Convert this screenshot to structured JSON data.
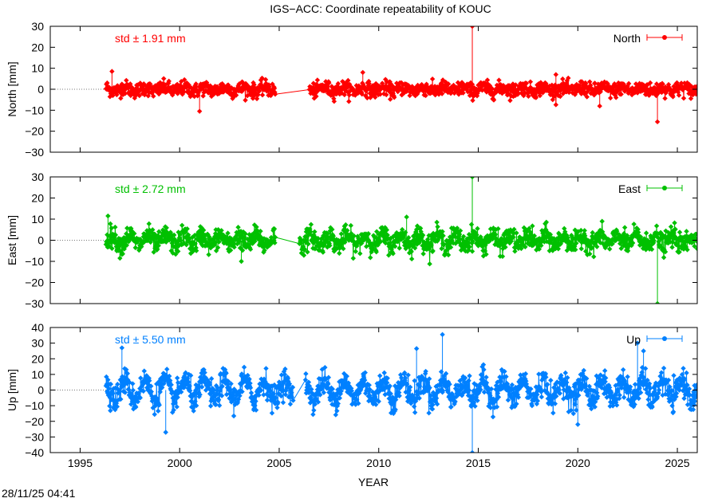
{
  "timestamp": "28/11/25 04:41",
  "chart_data": {
    "type": "scatter",
    "title": "IGS−ACC: Coordinate repeatability of KOUC",
    "xlabel": "YEAR",
    "xlim": [
      1993.5,
      2026.0
    ],
    "xticks": [
      1995,
      2000,
      2005,
      2010,
      2015,
      2020,
      2025
    ],
    "panels": [
      {
        "id": "north",
        "ylabel": "North [mm]",
        "ylim": [
          -30,
          30
        ],
        "yticks": [
          -30,
          -20,
          -10,
          0,
          10,
          20,
          30
        ],
        "color": "#ff0000",
        "legend": "North",
        "legend_position": "top-right",
        "std_label": "std ± 1.91 mm",
        "std_mm": 1.91,
        "data_start": 1996.3,
        "data_end": 2026.0,
        "gaps": [
          [
            2004.8,
            2006.5
          ]
        ],
        "outliers": [
          {
            "x": 2014.7,
            "y": 30
          },
          {
            "x": 2024.0,
            "y": -15.5
          },
          {
            "x": 2001.0,
            "y": -10.5
          },
          {
            "x": 2009.2,
            "y": 8.0
          },
          {
            "x": 1996.6,
            "y": 8.5
          },
          {
            "x": 2018.9,
            "y": 7.0
          },
          {
            "x": 2021.1,
            "y": -8.0
          }
        ]
      },
      {
        "id": "east",
        "ylabel": "East [mm]",
        "ylim": [
          -30,
          30
        ],
        "yticks": [
          -30,
          -20,
          -10,
          0,
          10,
          20,
          30
        ],
        "color": "#00c000",
        "legend": "East",
        "legend_position": "top-right",
        "std_label": "std ± 2.72 mm",
        "std_mm": 2.72,
        "data_start": 1996.3,
        "data_end": 2026.0,
        "gaps": [
          [
            2004.8,
            2006.0
          ]
        ],
        "outliers": [
          {
            "x": 2014.7,
            "y": 30
          },
          {
            "x": 2024.0,
            "y": -30
          },
          {
            "x": 1996.4,
            "y": 11.5
          },
          {
            "x": 2011.4,
            "y": 11.0
          },
          {
            "x": 2003.1,
            "y": -10.0
          },
          {
            "x": 2025.5,
            "y": -4.5
          }
        ]
      },
      {
        "id": "up",
        "ylabel": "Up [mm]",
        "ylim": [
          -40,
          40
        ],
        "yticks": [
          -40,
          -30,
          -20,
          -10,
          0,
          10,
          20,
          30,
          40
        ],
        "color": "#0080ff",
        "legend": "Up",
        "legend_position": "top-right",
        "std_label": "std ± 5.50 mm",
        "std_mm": 5.5,
        "data_start": 1996.3,
        "data_end": 2026.0,
        "gaps": [
          [
            2005.7,
            2006.3
          ]
        ],
        "outliers": [
          {
            "x": 2013.2,
            "y": 35.5
          },
          {
            "x": 2014.7,
            "y": -40
          },
          {
            "x": 1997.1,
            "y": 27.0
          },
          {
            "x": 1999.3,
            "y": -27.0
          },
          {
            "x": 2011.9,
            "y": 26.5
          },
          {
            "x": 2020.0,
            "y": -22.0
          },
          {
            "x": 2023.0,
            "y": 30.0
          },
          {
            "x": 2023.3,
            "y": 25.0
          }
        ]
      }
    ],
    "legend_style": "line with point and error bars"
  }
}
